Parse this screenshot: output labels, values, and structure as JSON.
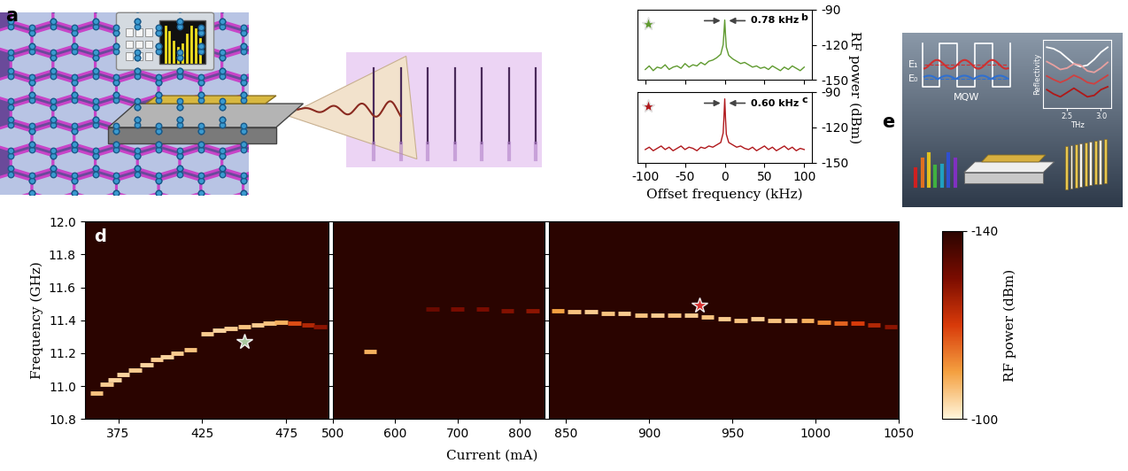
{
  "chart_data": [
    {
      "type": "line",
      "title": "b",
      "color": "#5f9a2f",
      "marker": "star",
      "x": [
        -100,
        -95,
        -90,
        -85,
        -80,
        -75,
        -70,
        -65,
        -60,
        -55,
        -50,
        -45,
        -40,
        -35,
        -30,
        -25,
        -20,
        -15,
        -10,
        -5,
        -2,
        -1,
        0,
        1,
        2,
        5,
        10,
        15,
        20,
        25,
        30,
        35,
        40,
        45,
        50,
        55,
        60,
        65,
        70,
        75,
        80,
        85,
        90,
        95,
        100
      ],
      "values": [
        -141,
        -138,
        -142,
        -139,
        -140,
        -137,
        -141,
        -139,
        -138,
        -140,
        -136,
        -139,
        -137,
        -138,
        -135,
        -137,
        -134,
        -133,
        -131,
        -128,
        -120,
        -110,
        -99,
        -112,
        -122,
        -129,
        -132,
        -134,
        -136,
        -135,
        -137,
        -139,
        -138,
        -140,
        -139,
        -141,
        -138,
        -140,
        -142,
        -139,
        -141,
        -138,
        -140,
        -142,
        -139
      ],
      "xlim": [
        -110,
        110
      ],
      "xticks": [
        -100,
        -50,
        0,
        50,
        100
      ],
      "ylim": [
        -150,
        -90
      ],
      "yticks": [
        -150,
        -120,
        -90
      ],
      "tick_labels": "y",
      "annotations": [
        {
          "text": "0.78 kHz"
        }
      ]
    },
    {
      "type": "line",
      "title": "c",
      "color": "#b0181c",
      "marker": "star",
      "x": [
        -100,
        -95,
        -90,
        -85,
        -80,
        -75,
        -70,
        -65,
        -60,
        -55,
        -50,
        -45,
        -40,
        -35,
        -30,
        -25,
        -20,
        -15,
        -10,
        -5,
        -2,
        -1,
        0,
        1,
        2,
        5,
        10,
        15,
        20,
        25,
        30,
        35,
        40,
        45,
        50,
        55,
        60,
        65,
        70,
        75,
        80,
        85,
        90,
        95,
        100
      ],
      "values": [
        -139,
        -137,
        -140,
        -138,
        -136,
        -139,
        -137,
        -140,
        -138,
        -136,
        -139,
        -137,
        -138,
        -140,
        -137,
        -138,
        -136,
        -137,
        -135,
        -133,
        -125,
        -112,
        -96,
        -113,
        -126,
        -133,
        -135,
        -137,
        -136,
        -138,
        -139,
        -137,
        -140,
        -138,
        -136,
        -139,
        -137,
        -140,
        -138,
        -136,
        -139,
        -137,
        -140,
        -138,
        -139
      ],
      "xlim": [
        -110,
        110
      ],
      "xticks": [
        -100,
        -50,
        0,
        50,
        100
      ],
      "ylim": [
        -150,
        -90
      ],
      "yticks": [
        -150,
        -120,
        -90
      ],
      "xlabel": "Offset frequency (kHz)",
      "ylabel": "RF power (dBm)",
      "annotations": [
        {
          "text": "0.60 kHz"
        }
      ]
    },
    {
      "type": "heatmap",
      "title": "d",
      "xlabel": "Current (mA)",
      "ylabel": "Frequency (GHz)",
      "ylim": [
        10.8,
        12.0
      ],
      "yticks": [
        10.8,
        {
          "value": 11.0,
          "label": "11.0"
        },
        11.2,
        11.4,
        11.6,
        11.8,
        {
          "value": 12.0,
          "label": "12.0"
        }
      ],
      "panels": [
        {
          "xlim": [
            355,
            500
          ],
          "xticks": [
            375,
            425,
            475
          ],
          "x": [
            362,
            368,
            373,
            378,
            385,
            392,
            398,
            404,
            410,
            418,
            428,
            435,
            442,
            450,
            458,
            465,
            472,
            480,
            488,
            495
          ],
          "y": [
            10.96,
            11.01,
            11.04,
            11.07,
            11.1,
            11.13,
            11.16,
            11.18,
            11.2,
            11.22,
            11.32,
            11.34,
            11.35,
            11.36,
            11.37,
            11.38,
            11.39,
            11.38,
            11.37,
            11.36
          ],
          "power": [
            -106,
            -105,
            -104,
            -104,
            -105,
            -104,
            -105,
            -104,
            -105,
            -106,
            -105,
            -104,
            -105,
            -106,
            -105,
            -106,
            -108,
            -118,
            -124,
            -128
          ]
        },
        {
          "xlim": [
            500,
            840
          ],
          "xticks": [
            500,
            600,
            700,
            800
          ],
          "x": [
            560,
            660,
            700,
            740,
            780,
            820
          ],
          "y": [
            11.21,
            11.47,
            11.47,
            11.47,
            11.46,
            11.46
          ],
          "power": [
            -108,
            -132,
            -130,
            -130,
            -129,
            -128
          ]
        },
        {
          "xlim": [
            840,
            1050
          ],
          "xticks": [
            850,
            900,
            950,
            1000,
            1050
          ],
          "x": [
            845,
            855,
            865,
            875,
            885,
            895,
            905,
            915,
            925,
            935,
            945,
            955,
            965,
            975,
            985,
            995,
            1005,
            1015,
            1025,
            1035,
            1045
          ],
          "y": [
            11.46,
            11.45,
            11.45,
            11.44,
            11.44,
            11.43,
            11.43,
            11.43,
            11.43,
            11.42,
            11.41,
            11.4,
            11.41,
            11.4,
            11.4,
            11.4,
            11.39,
            11.38,
            11.38,
            11.37,
            11.36
          ],
          "power": [
            -110,
            -106,
            -105,
            -106,
            -105,
            -106,
            -105,
            -106,
            -105,
            -106,
            -105,
            -106,
            -105,
            -106,
            -105,
            -108,
            -112,
            -116,
            -120,
            -124,
            -128
          ]
        }
      ],
      "markers": [
        {
          "x": 450,
          "y": 11.27,
          "color": "#a8c8a0",
          "marker": "star"
        },
        {
          "x": 930,
          "y": 11.49,
          "color": "#d83030",
          "marker": "star"
        }
      ],
      "colorbar": {
        "label": "RF power (dBm)",
        "range": [
          -140,
          -100
        ],
        "ticks": [
          -140,
          -100
        ]
      }
    },
    {
      "type": "line",
      "xlabel": "THz",
      "ylabel": "Reflectivity",
      "x": [
        2.2,
        2.3,
        2.4,
        2.5,
        2.6,
        2.7,
        2.8,
        2.9,
        3.0,
        3.1
      ],
      "series": [
        {
          "color": "#ffffff",
          "values": [
            0.95,
            0.93,
            0.88,
            0.8,
            0.72,
            0.68,
            0.7,
            0.78,
            0.88,
            0.95
          ]
        },
        {
          "color": "#e8a0a0",
          "values": [
            0.75,
            0.7,
            0.64,
            0.66,
            0.72,
            0.7,
            0.62,
            0.6,
            0.66,
            0.74
          ]
        },
        {
          "color": "#d04040",
          "values": [
            0.55,
            0.5,
            0.46,
            0.5,
            0.56,
            0.52,
            0.46,
            0.44,
            0.5,
            0.56
          ]
        },
        {
          "color": "#b01818",
          "values": [
            0.36,
            0.3,
            0.26,
            0.32,
            0.38,
            0.32,
            0.26,
            0.28,
            0.36,
            0.4
          ]
        }
      ],
      "xlim": [
        2.15,
        3.15
      ],
      "xticks": [
        2.5,
        {
          "value": 3.0,
          "label": "3.0"
        }
      ],
      "ylim": [
        0.1,
        1.05
      ],
      "yticks": [],
      "tick_labels": "x"
    }
  ],
  "illustration_a": {
    "title": "a"
  },
  "diagram_e": {
    "title": "e",
    "levels": [
      "E₁",
      "E₀"
    ],
    "caption": "MQW"
  }
}
